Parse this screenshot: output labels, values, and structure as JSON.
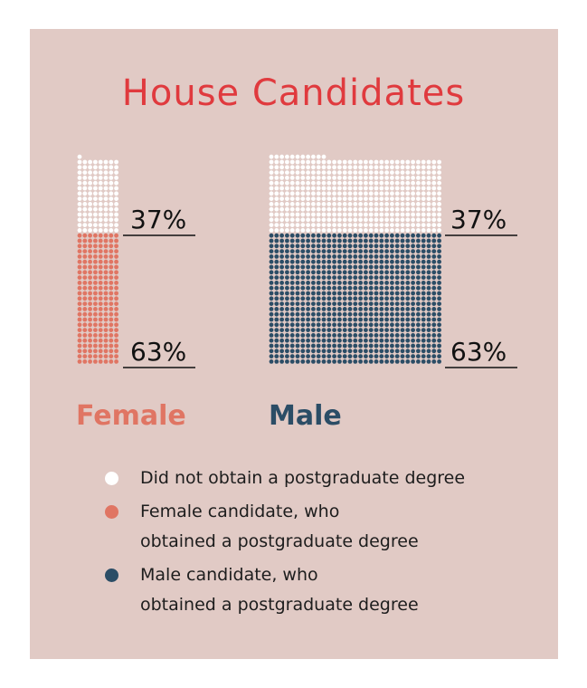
{
  "colors": {
    "background": "#e1cac5",
    "title": "#e03a3e",
    "female": "#e07563",
    "male": "#2b4d66",
    "no_degree": "#ffffff"
  },
  "chart_data": {
    "type": "waffle",
    "title": "House Candidates",
    "series": [
      {
        "name": "Female",
        "color": "#e07563",
        "values": [
          {
            "label": "37%",
            "category": "Did not obtain a postgraduate degree"
          },
          {
            "label": "63%",
            "category": "Female candidate, who obtained a postgraduate degree"
          }
        ]
      },
      {
        "name": "Male",
        "color": "#2b4d66",
        "values": [
          {
            "label": "37%",
            "category": "Did not obtain a postgraduate degree"
          },
          {
            "label": "63%",
            "category": "Male candidate, who obtained a postgraduate degree"
          }
        ]
      }
    ],
    "female_percentages": {
      "no_degree": 37,
      "degree": 63
    },
    "male_percentages": {
      "no_degree": 37,
      "degree": 63
    },
    "legend": [
      {
        "color": "#ffffff",
        "lines": [
          "Did not obtain a postgraduate degree"
        ]
      },
      {
        "color": "#e07563",
        "lines": [
          "Female candidate, who",
          "obtained a postgraduate degree"
        ]
      },
      {
        "color": "#2b4d66",
        "lines": [
          "Male candidate, who",
          "obtained a postgraduate degree"
        ]
      }
    ]
  }
}
